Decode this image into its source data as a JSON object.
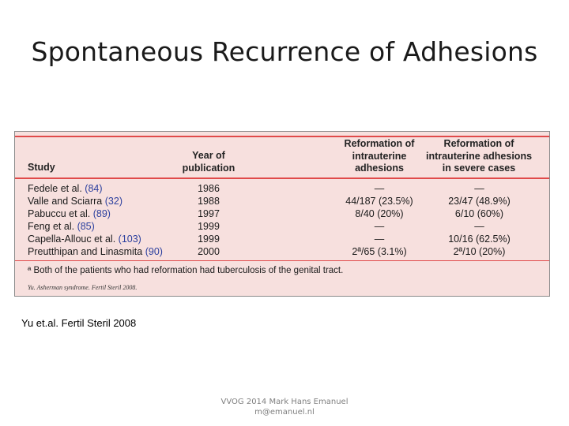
{
  "slide": {
    "title": "Spontaneous Recurrence of Adhesions",
    "caption": "Yu et.al. Fertil Steril 2008",
    "footer_line1": "VVOG 2014 Mark Hans Emanuel",
    "footer_line2": "m@emanuel.nl"
  },
  "table": {
    "headers": {
      "study": "Study",
      "year_l1": "Year of",
      "year_l2": "publication",
      "c3_l1": "Reformation of",
      "c3_l2": "intrauterine",
      "c3_l3": "adhesions",
      "c4_l1": "Reformation of",
      "c4_l2": "intrauterine adhesions",
      "c4_l3": "in severe cases"
    },
    "rows": [
      {
        "study": "Fedele et al.",
        "ref": "(84)",
        "year": "1986",
        "reform": "—",
        "severe": "—"
      },
      {
        "study": "Valle and Sciarra",
        "ref": "(32)",
        "year": "1988",
        "reform": "44/187 (23.5%)",
        "severe": "23/47 (48.9%)"
      },
      {
        "study": "Pabuccu et al.",
        "ref": "(89)",
        "year": "1997",
        "reform": "8/40 (20%)",
        "severe": "6/10 (60%)"
      },
      {
        "study": "Feng et al.",
        "ref": "(85)",
        "year": "1999",
        "reform": "—",
        "severe": "—"
      },
      {
        "study": "Capella-Allouc et al.",
        "ref": "(103)",
        "year": "1999",
        "reform": "—",
        "severe": "10/16 (62.5%)"
      },
      {
        "study": "Preutthipan and Linasmita",
        "ref": "(90)",
        "year": "2000",
        "reform": "2ª/65 (3.1%)",
        "severe": "2ª/10 (20%)"
      }
    ],
    "footnote": "ª Both of the patients who had reformation had tuberculosis of the genital tract.",
    "citation": "Yu. Asherman syndrome. Fertil Steril 2008."
  }
}
